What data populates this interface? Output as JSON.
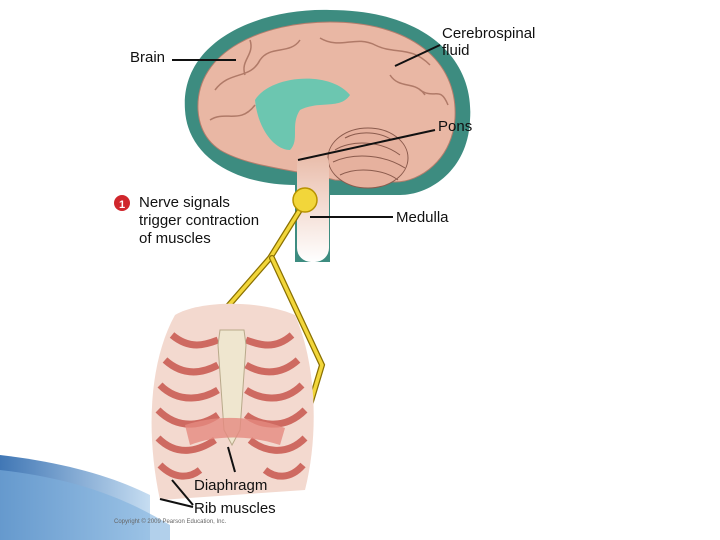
{
  "labels": {
    "brain": "Brain",
    "cerebrospinal_fluid": [
      "Cerebrospinal",
      "fluid"
    ],
    "pons": "Pons",
    "medulla": "Medulla",
    "diaphragm": "Diaphragm",
    "rib_muscles": "Rib muscles"
  },
  "step": {
    "number": "1",
    "text": [
      "Nerve signals",
      "trigger contraction",
      "of muscles"
    ]
  },
  "copyright": "Copyright © 2009 Pearson Education, Inc."
}
